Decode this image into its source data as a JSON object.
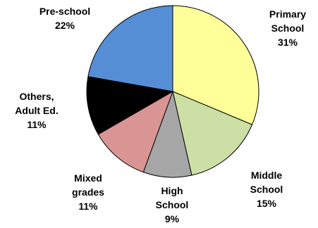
{
  "chart_data": {
    "type": "pie",
    "title": "",
    "start_angle_deg": 0,
    "direction": "clockwise",
    "slices": [
      {
        "lines": [
          "Primary",
          "School",
          "31%"
        ],
        "value": 31,
        "color": "#FFFF99"
      },
      {
        "lines": [
          "Middle",
          "School",
          "15%"
        ],
        "value": 15,
        "color": "#CCE0A6"
      },
      {
        "lines": [
          "High",
          "School",
          "9%"
        ],
        "value": 9,
        "color": "#A6A6A6"
      },
      {
        "lines": [
          "Mixed",
          "grades",
          "11%"
        ],
        "value": 11,
        "color": "#D99594"
      },
      {
        "lines": [
          "Others,",
          "Adult Ed.",
          "11%"
        ],
        "value": 11,
        "color": "#000000"
      },
      {
        "lines": [
          "Pre-school",
          "22%"
        ],
        "value": 22,
        "color": "#558ED5"
      }
    ]
  }
}
